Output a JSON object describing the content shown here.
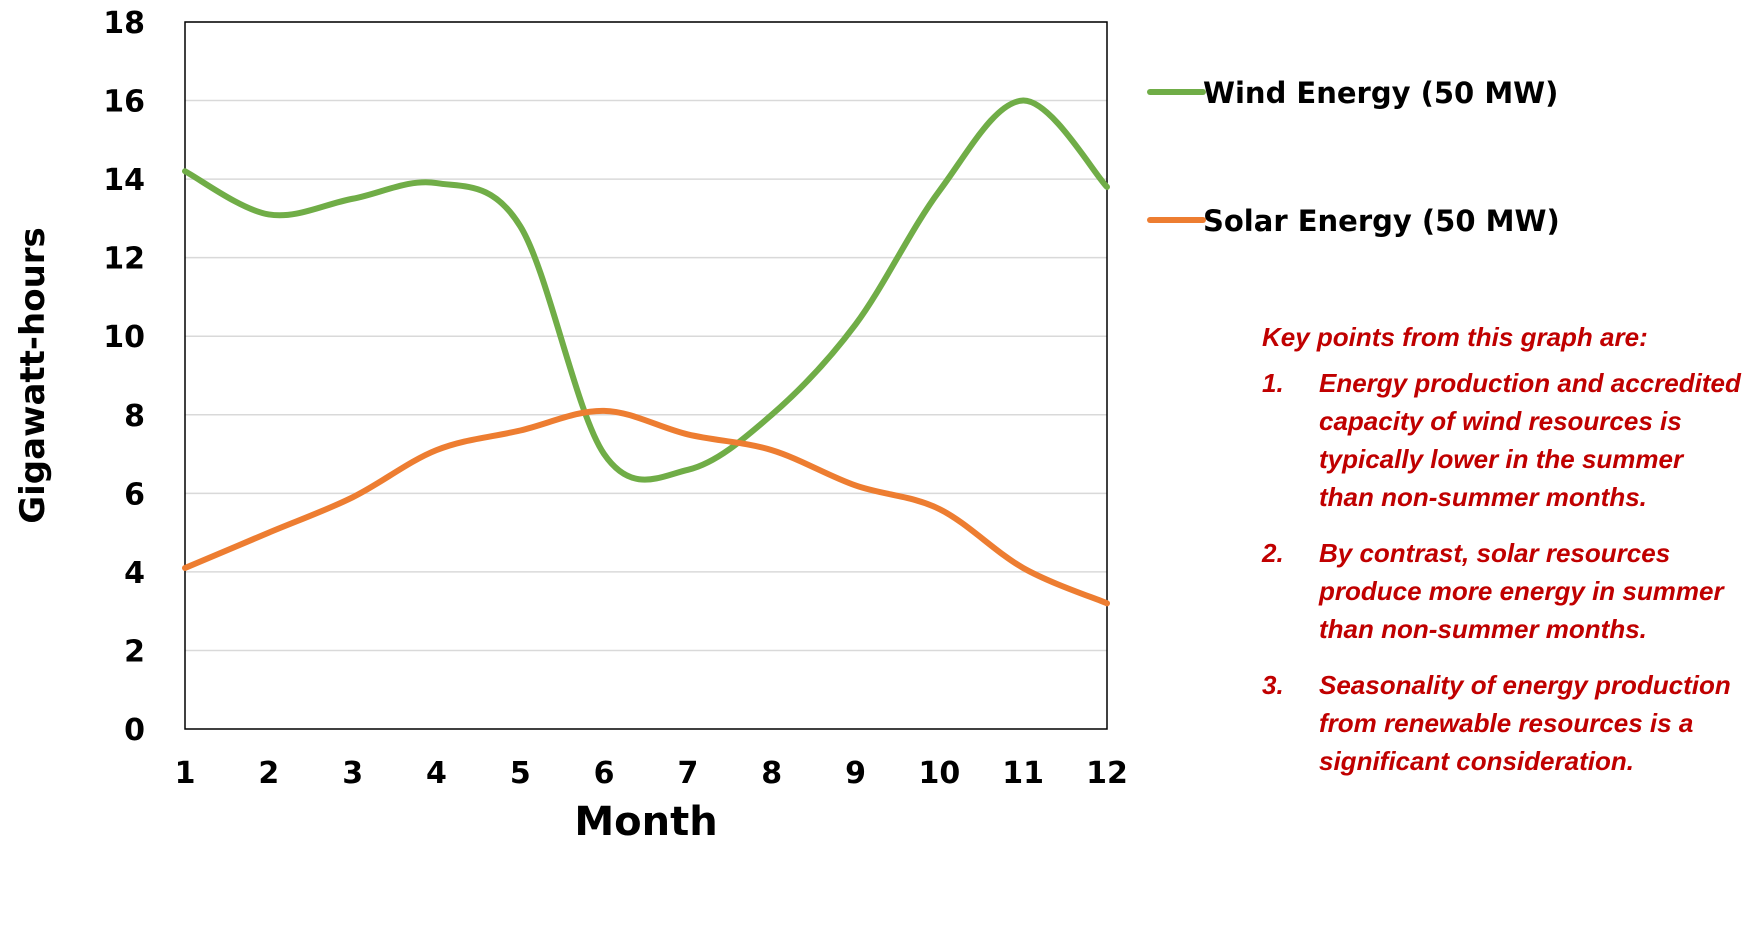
{
  "chart_data": {
    "type": "line",
    "smooth": true,
    "xlabel": "Month",
    "ylabel": "Gigawatt-hours",
    "x": [
      1,
      2,
      3,
      4,
      5,
      6,
      7,
      8,
      9,
      10,
      11,
      12
    ],
    "xlim": [
      1,
      12
    ],
    "ylim": [
      0,
      18
    ],
    "yticks": [
      0,
      2,
      4,
      6,
      8,
      10,
      12,
      14,
      16,
      18
    ],
    "grid": true,
    "legend_position": "right",
    "series": [
      {
        "name": "Wind Energy (50 MW)",
        "color": "#70ad47",
        "values": [
          14.2,
          13.1,
          13.5,
          13.9,
          12.8,
          7.0,
          6.6,
          8.0,
          10.3,
          13.7,
          16.0,
          13.8
        ]
      },
      {
        "name": "Solar Energy (50 MW)",
        "color": "#ed7d31",
        "values": [
          4.1,
          5.0,
          5.9,
          7.1,
          7.6,
          8.1,
          7.5,
          7.1,
          6.2,
          5.6,
          4.1,
          3.2
        ]
      }
    ]
  },
  "notes": {
    "heading": "Key points from this graph are:",
    "items": [
      {
        "num": "1.",
        "text": "Energy production and accredited capacity of wind resources is typically lower in the summer than non-summer months."
      },
      {
        "num": "2.",
        "text": "By contrast, solar resources produce more energy in summer than non-summer months."
      },
      {
        "num": "3.",
        "text": "Seasonality of energy production from renewable resources is a significant consideration."
      }
    ]
  }
}
